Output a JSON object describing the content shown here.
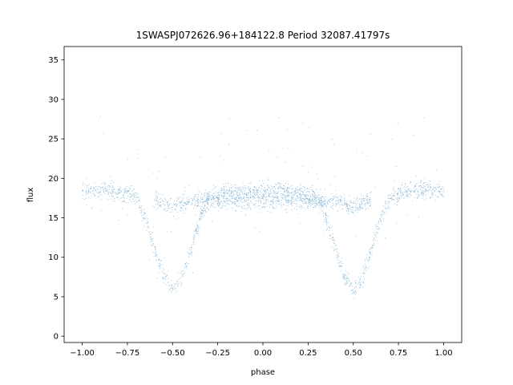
{
  "chart_data": {
    "type": "scatter",
    "title": "1SWASPJ072626.96+184122.8 Period 32087.41797s",
    "xlabel": "phase",
    "ylabel": "flux",
    "xlim": [
      -1.1,
      1.1
    ],
    "ylim": [
      -0.8,
      36.7
    ],
    "x_ticks": [
      -1.0,
      -0.75,
      -0.5,
      -0.25,
      0.0,
      0.25,
      0.5,
      0.75,
      1.0
    ],
    "x_tick_labels": [
      "−1.00",
      "−0.75",
      "−0.50",
      "−0.25",
      "0.00",
      "0.25",
      "0.50",
      "0.75",
      "1.00"
    ],
    "y_ticks": [
      0,
      5,
      10,
      15,
      20,
      25,
      30,
      35
    ],
    "y_tick_labels": [
      "0",
      "5",
      "10",
      "15",
      "20",
      "25",
      "30",
      "35"
    ],
    "grid": false,
    "legend": "none",
    "point_color": "#1f77b4",
    "series": [
      {
        "values": [
          [
            -1.0,
            18.4
          ],
          [
            -0.95,
            18.5
          ],
          [
            -0.9,
            18.6
          ],
          [
            -0.85,
            18.5
          ],
          [
            -0.8,
            18.3
          ],
          [
            -0.75,
            18.0
          ],
          [
            -0.7,
            17.6
          ],
          [
            -0.65,
            14.8
          ],
          [
            -0.6,
            11.0
          ],
          [
            -0.55,
            7.5
          ],
          [
            -0.5,
            5.8
          ],
          [
            -0.45,
            7.5
          ],
          [
            -0.4,
            11.0
          ],
          [
            -0.35,
            14.8
          ],
          [
            -0.3,
            17.6
          ],
          [
            -0.25,
            18.0
          ],
          [
            -0.2,
            18.2
          ],
          [
            -0.15,
            18.3
          ],
          [
            -0.1,
            18.4
          ],
          [
            -0.05,
            18.5
          ],
          [
            0.0,
            18.5
          ],
          [
            0.05,
            18.5
          ],
          [
            0.1,
            18.4
          ],
          [
            0.15,
            18.3
          ],
          [
            0.2,
            18.2
          ],
          [
            0.25,
            18.0
          ],
          [
            0.3,
            17.6
          ],
          [
            0.35,
            14.8
          ],
          [
            0.4,
            11.0
          ],
          [
            0.45,
            7.5
          ],
          [
            0.5,
            5.8
          ],
          [
            0.55,
            7.5
          ],
          [
            0.6,
            11.0
          ],
          [
            0.65,
            14.8
          ],
          [
            0.7,
            17.6
          ],
          [
            0.75,
            18.0
          ],
          [
            0.8,
            18.3
          ],
          [
            0.85,
            18.5
          ],
          [
            0.9,
            18.6
          ],
          [
            0.95,
            18.5
          ],
          [
            1.0,
            18.4
          ]
        ]
      },
      {
        "values": [
          [
            -0.6,
            17.2
          ],
          [
            -0.55,
            16.8
          ],
          [
            -0.5,
            16.4
          ],
          [
            -0.45,
            16.8
          ],
          [
            -0.4,
            17.2
          ],
          [
            0.4,
            17.2
          ],
          [
            0.45,
            16.8
          ],
          [
            0.5,
            16.4
          ],
          [
            0.55,
            16.8
          ],
          [
            0.6,
            17.2
          ]
        ]
      }
    ]
  }
}
